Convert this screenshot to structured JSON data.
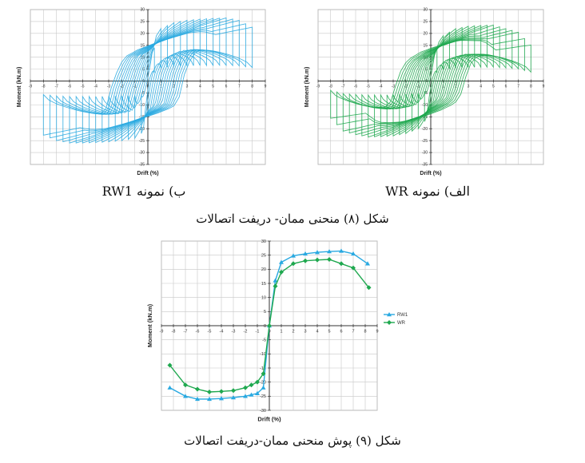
{
  "figure8": {
    "caption": "شکل (۸) منحنی ممان- دریفت اتصالات",
    "panels": [
      {
        "sub_caption": "ب) نمونه RW1"
      },
      {
        "sub_caption": "الف) نمونه WR"
      }
    ]
  },
  "figure9": {
    "caption": "شکل (۹) پوش منحنی ممان-دریفت اتصالات"
  },
  "colors": {
    "rw1": "#29a9e1",
    "wr": "#1fa84f",
    "grid": "#c8c8c8",
    "axis": "#333333"
  },
  "chart_data": [
    {
      "type": "line",
      "chart_style": "hysteresis",
      "xlabel": "Drift (%)",
      "ylabel": "Moment (kN.m)",
      "xlim": [
        -9,
        9
      ],
      "ylim": [
        -35,
        30
      ],
      "x_ticks": [
        -9,
        -8,
        -7,
        -6,
        -5,
        -4,
        -3,
        -2,
        -1,
        0,
        1,
        2,
        3,
        4,
        5,
        6,
        7,
        8,
        9
      ],
      "y_ticks": [
        30,
        25,
        20,
        15,
        10,
        5,
        0,
        -5,
        -10,
        -15,
        -20,
        -25,
        -30,
        -35
      ],
      "grid": true,
      "series": [
        {
          "color": "#29a9e1",
          "envelope_x": [
            -8.3,
            -7,
            -6,
            -5,
            -4,
            -3,
            -2,
            -1,
            -0.5,
            0,
            0.5,
            1,
            2,
            3,
            4,
            5,
            6,
            7,
            8.2
          ],
          "envelope_y": [
            -22,
            -25,
            -26,
            -26,
            -25.8,
            -25.5,
            -25,
            -24,
            -22,
            0,
            14,
            22,
            24.5,
            25.5,
            26,
            26.3,
            26.5,
            25.5,
            22
          ]
        }
      ]
    },
    {
      "type": "line",
      "chart_style": "hysteresis",
      "xlabel": "Drift (%)",
      "ylabel": "Moment (kN.m)",
      "xlim": [
        -9,
        9
      ],
      "ylim": [
        -35,
        30
      ],
      "x_ticks": [
        -9,
        -8,
        -7,
        -6,
        -5,
        -4,
        -3,
        -2,
        -1,
        0,
        1,
        2,
        3,
        4,
        5,
        6,
        7,
        8,
        9
      ],
      "y_ticks": [
        30,
        25,
        20,
        15,
        10,
        5,
        0,
        -5,
        -10,
        -15,
        -20,
        -25,
        -30,
        -35
      ],
      "grid": true,
      "series": [
        {
          "color": "#1fa84f",
          "envelope_x": [
            -8.3,
            -7,
            -6,
            -5,
            -4,
            -3,
            -2,
            -1,
            -0.5,
            0,
            0.5,
            1,
            2,
            3,
            4,
            5,
            6,
            7,
            8.3
          ],
          "envelope_y": [
            -14,
            -21,
            -22.5,
            -23.5,
            -23.3,
            -23,
            -22,
            -20,
            -17,
            0,
            14,
            19,
            22,
            23,
            23.3,
            23.5,
            22,
            20.5,
            13.5
          ]
        }
      ]
    },
    {
      "type": "line",
      "xlabel": "Drift (%)",
      "ylabel": "Moment (kN.m)",
      "xlim": [
        -9,
        9
      ],
      "ylim": [
        -30,
        30
      ],
      "x_ticks": [
        -9,
        -8,
        -7,
        -6,
        -5,
        -4,
        -3,
        -2,
        -1,
        0,
        1,
        2,
        3,
        4,
        5,
        6,
        7,
        8,
        9
      ],
      "y_ticks": [
        30,
        25,
        20,
        15,
        10,
        5,
        0,
        -5,
        -10,
        -15,
        -20,
        -25,
        -30
      ],
      "grid": true,
      "legend": "right",
      "series": [
        {
          "name": "RW1",
          "color": "#29a9e1",
          "marker": "triangle",
          "x": [
            -8.3,
            -7,
            -6,
            -5,
            -4,
            -3,
            -2,
            -1.5,
            -1,
            -0.5,
            0,
            0.5,
            1,
            2,
            3,
            4,
            5,
            6,
            7,
            8.2
          ],
          "y": [
            -22,
            -25,
            -26,
            -26,
            -25.8,
            -25.5,
            -25,
            -24.5,
            -24,
            -22,
            0,
            16,
            22.5,
            24.8,
            25.5,
            26,
            26.3,
            26.5,
            25.5,
            22
          ]
        },
        {
          "name": "WR",
          "color": "#1fa84f",
          "marker": "diamond",
          "x": [
            -8.3,
            -7,
            -6,
            -5,
            -4,
            -3,
            -2,
            -1.5,
            -1,
            -0.5,
            0,
            0.5,
            1,
            2,
            3,
            4,
            5,
            6,
            7,
            8.3
          ],
          "y": [
            -14,
            -21,
            -22.5,
            -23.5,
            -23.3,
            -23,
            -22,
            -21,
            -20,
            -17,
            0,
            14,
            19,
            22,
            23,
            23.3,
            23.5,
            22,
            20.5,
            13.5
          ]
        }
      ]
    }
  ]
}
